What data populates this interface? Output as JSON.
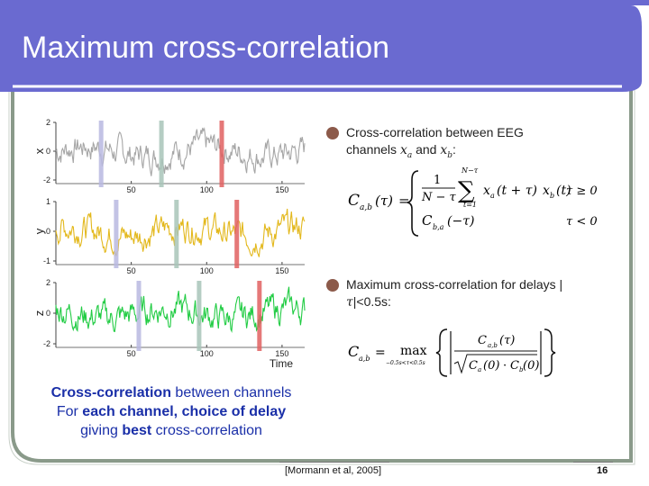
{
  "slide": {
    "title": "Maximum cross-correlation",
    "page_number": "16",
    "reference": "[Mormann et al, 2005]"
  },
  "bullets": [
    {
      "text_prefix": "Cross-correlation between EEG channels ",
      "var_a": "x",
      "sub_a": "a",
      "and_text": " and ",
      "var_b": "x",
      "sub_b": "b",
      "suffix": ":"
    },
    {
      "text_prefix": "Maximum cross-correlation for delays |",
      "tau": "τ",
      "text_suffix": "|<0.5s:"
    }
  ],
  "caption": {
    "line1_bold": "Cross-correlation",
    "line1_rest": " between channels",
    "line2_pre": "For ",
    "line2_bold": "each channel, choice of delay",
    "line3_pre": "giving ",
    "line3_bold": "best",
    "line3_rest": " cross-correlation"
  },
  "formula1": {
    "lhs": "C",
    "lhs_sub": "a,b",
    "arg": "(τ)",
    "eq": "=",
    "frac_num": "1",
    "frac_den": "N − τ",
    "sum_top": "N−τ",
    "sum_bottom": "t=1",
    "sum_body_1": "x",
    "sum_body_1_sub": "a",
    "sum_body_1_arg": "(t + τ)",
    "sum_body_2": "x",
    "sum_body_2_sub": "b",
    "sum_body_2_arg": "(t)",
    "line2_lhs": "C",
    "line2_sub": "b,a",
    "line2_arg": "(−τ)",
    "cond1": "τ ≥ 0",
    "cond2": "τ < 0"
  },
  "formula2": {
    "lhs": "C",
    "lhs_sub": "a,b",
    "eq": "=",
    "op": "max",
    "op_sub": "−0.5s<τ<0.5s",
    "num": "C",
    "num_sub": "a,b",
    "num_arg": "(τ)",
    "den_1": "C",
    "den_1_sub": "a",
    "den_1_arg": "(0)",
    "den_dot": "·",
    "den_2": "C",
    "den_2_sub": "b",
    "den_2_arg": "(0)"
  },
  "chart_data": {
    "type": "line",
    "xlabel": "Time",
    "x_ticks": [
      "50",
      "100",
      "150"
    ],
    "xlim": [
      0,
      165
    ],
    "panels": [
      {
        "ylabel": "x",
        "y_ticks": [
          "2",
          "0",
          "-2"
        ],
        "ylim": [
          -2,
          2
        ],
        "color": "#a6a6a6",
        "markers": [
          {
            "x": 30,
            "color": "#b8b8e0"
          },
          {
            "x": 70,
            "color": "#a8c4b8"
          },
          {
            "x": 110,
            "color": "#e06060"
          }
        ]
      },
      {
        "ylabel": "y",
        "y_ticks": [
          "1",
          "0",
          "-1"
        ],
        "ylim": [
          -1,
          1
        ],
        "color": "#e3b81c",
        "markers": [
          {
            "x": 40,
            "color": "#b8b8e0"
          },
          {
            "x": 80,
            "color": "#a8c4b8"
          },
          {
            "x": 120,
            "color": "#e06060"
          }
        ]
      },
      {
        "ylabel": "z",
        "y_ticks": [
          "2",
          "0",
          "-2"
        ],
        "ylim": [
          -2,
          2
        ],
        "color": "#22cc44",
        "markers": [
          {
            "x": 55,
            "color": "#b8b8e0"
          },
          {
            "x": 95,
            "color": "#a8c4b8"
          },
          {
            "x": 135,
            "color": "#e06060"
          }
        ]
      }
    ]
  },
  "colors": {
    "title_bar": "#6a6ad0",
    "frame": "#8a9a8a",
    "caption": "#1a2fa8",
    "bullet": "#8c5a4a"
  }
}
